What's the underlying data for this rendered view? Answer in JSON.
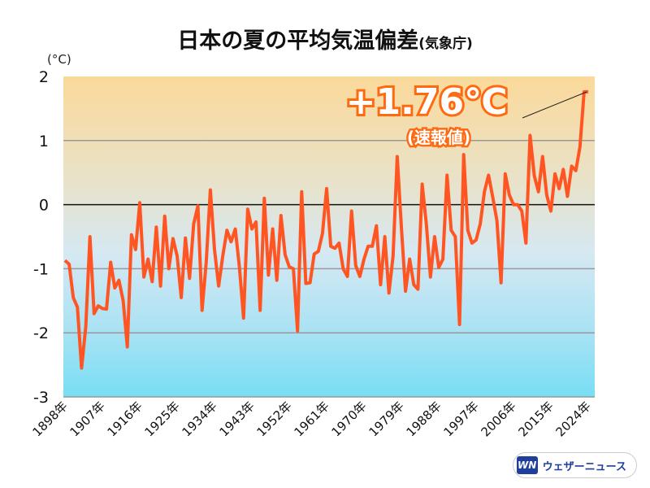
{
  "chart_data": {
    "type": "line",
    "title": "日本の夏の平均気温偏差",
    "source": "(気象庁)",
    "ylabel": "(°C)",
    "ylim": [
      -3,
      2
    ],
    "yticks": [
      2,
      1,
      0,
      -1,
      -2,
      -3
    ],
    "start_year": 1898,
    "xticks": [
      "1898年",
      "1907年",
      "1916年",
      "1925年",
      "1934年",
      "1943年",
      "1952年",
      "1961年",
      "1970年",
      "1979年",
      "1988年",
      "1997年",
      "2006年",
      "2015年",
      "2024年"
    ],
    "xtick_years": [
      1898,
      1907,
      1916,
      1925,
      1934,
      1943,
      1952,
      1961,
      1970,
      1979,
      1988,
      1997,
      2006,
      2015,
      2024
    ],
    "annotation": {
      "value": "+1.76℃",
      "note": "(速報値)"
    },
    "series": [
      {
        "name": "平均気温偏差",
        "color": "#ff5522",
        "values": [
          -0.87,
          -0.93,
          -1.45,
          -1.6,
          -2.55,
          -1.9,
          -0.5,
          -1.7,
          -1.58,
          -1.62,
          -1.63,
          -0.9,
          -1.3,
          -1.18,
          -1.5,
          -2.22,
          -0.47,
          -0.7,
          0.03,
          -1.13,
          -0.85,
          -1.2,
          -0.35,
          -1.27,
          -0.18,
          -1.0,
          -0.53,
          -0.8,
          -1.45,
          -0.52,
          -1.15,
          -0.3,
          -0.02,
          -1.65,
          -0.9,
          0.23,
          -0.7,
          -1.27,
          -0.8,
          -0.4,
          -0.58,
          -0.38,
          -0.98,
          -1.77,
          -0.07,
          -0.38,
          -0.27,
          -1.65,
          0.1,
          -1.1,
          -0.38,
          -1.18,
          -0.17,
          -0.78,
          -0.97,
          -1.0,
          -1.97,
          0.2,
          -1.23,
          -1.22,
          -0.77,
          -0.73,
          -0.45,
          0.25,
          -0.65,
          -0.68,
          -0.6,
          -1.0,
          -1.12,
          -0.1,
          -0.95,
          -1.12,
          -0.85,
          -0.65,
          -0.65,
          -0.33,
          -1.25,
          -0.5,
          -1.38,
          -0.8,
          0.75,
          -0.35,
          -1.35,
          -0.85,
          -1.25,
          -1.32,
          0.32,
          -0.3,
          -1.13,
          -0.5,
          -0.98,
          -0.85,
          0.46,
          -0.4,
          -0.5,
          -1.87,
          0.78,
          -0.4,
          -0.6,
          -0.55,
          -0.3,
          0.2,
          0.46,
          0.12,
          -0.25,
          -1.22,
          0.48,
          0.15,
          0.0,
          0.0,
          -0.1,
          -0.6,
          1.08,
          0.45,
          0.2,
          0.75,
          0.15,
          -0.1,
          0.48,
          0.25,
          0.55,
          0.13,
          0.6,
          0.53,
          0.9,
          1.76,
          1.76
        ]
      }
    ]
  },
  "logo": {
    "mark": "WN",
    "name": "ウェザーニュース"
  }
}
